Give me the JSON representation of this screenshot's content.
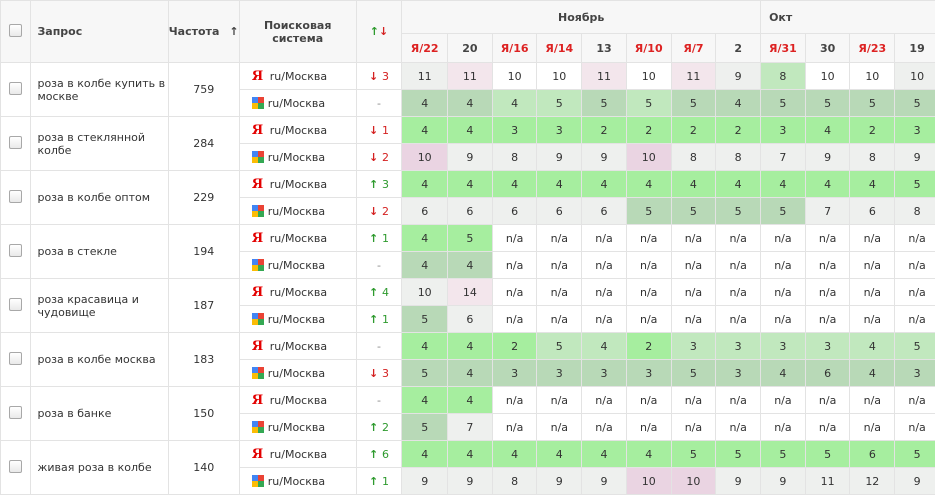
{
  "header": {
    "query": "Запрос",
    "frequency": "Частота",
    "frequency_sort": "↑",
    "engine": "Поисковая система",
    "trend_up": "↑",
    "trend_down": "↓",
    "month_nov": "Ноябрь",
    "month_oct": "Окт",
    "dates": [
      {
        "label": "/22",
        "ya": true
      },
      {
        "label": "20",
        "ya": false
      },
      {
        "label": "/16",
        "ya": true
      },
      {
        "label": "/14",
        "ya": true
      },
      {
        "label": "13",
        "ya": false
      },
      {
        "label": "/10",
        "ya": true
      },
      {
        "label": "/7",
        "ya": true
      },
      {
        "label": "2",
        "ya": false
      },
      {
        "label": "/31",
        "ya": true
      },
      {
        "label": "30",
        "ya": false
      },
      {
        "label": "/23",
        "ya": true
      },
      {
        "label": "19",
        "ya": false
      }
    ],
    "ya_letter": "Я"
  },
  "engines": {
    "yandex_logo": "Я",
    "region": "ru/Москва"
  },
  "rows": [
    {
      "query": "роза в колбе купить в москве",
      "freq": "759",
      "y": {
        "trend": "3",
        "dir": "down",
        "pos": [
          "11",
          "11",
          "10",
          "10",
          "11",
          "10",
          "11",
          "9",
          "8",
          "10",
          "10",
          "10"
        ],
        "cls": [
          "c-e",
          "c-p",
          "c-n",
          "c-n",
          "c-p",
          "c-n",
          "c-p",
          "c-e",
          "c-g2",
          "c-n",
          "c-n",
          "c-e"
        ]
      },
      "g": {
        "trend": "-",
        "dir": "none",
        "pos": [
          "4",
          "4",
          "4",
          "5",
          "5",
          "5",
          "5",
          "4",
          "5",
          "5",
          "5",
          "5"
        ],
        "cls": [
          "c-g3",
          "c-g3",
          "c-g2",
          "c-g2",
          "c-g3",
          "c-g2",
          "c-g3",
          "c-g3",
          "c-g3",
          "c-g3",
          "c-g3",
          "c-g3"
        ]
      }
    },
    {
      "query": "роза в стеклянной колбе",
      "freq": "284",
      "y": {
        "trend": "1",
        "dir": "down",
        "pos": [
          "4",
          "4",
          "3",
          "3",
          "2",
          "2",
          "2",
          "2",
          "3",
          "4",
          "2",
          "3"
        ],
        "cls": [
          "c-g1",
          "c-g1",
          "c-g1",
          "c-g1",
          "c-g1",
          "c-g1",
          "c-g1",
          "c-g1",
          "c-g1",
          "c-g1",
          "c-g1",
          "c-g1"
        ]
      },
      "g": {
        "trend": "2",
        "dir": "down",
        "pos": [
          "10",
          "9",
          "8",
          "9",
          "9",
          "10",
          "8",
          "8",
          "7",
          "9",
          "8",
          "9"
        ],
        "cls": [
          "c-pk",
          "c-e",
          "c-e",
          "c-e",
          "c-e",
          "c-pk",
          "c-e",
          "c-e",
          "c-e",
          "c-e",
          "c-e",
          "c-e"
        ]
      }
    },
    {
      "query": "роза в колбе оптом",
      "freq": "229",
      "y": {
        "trend": "3",
        "dir": "up",
        "pos": [
          "4",
          "4",
          "4",
          "4",
          "4",
          "4",
          "4",
          "4",
          "4",
          "4",
          "4",
          "5"
        ],
        "cls": [
          "c-g1",
          "c-g1",
          "c-g1",
          "c-g1",
          "c-g1",
          "c-g1",
          "c-g1",
          "c-g1",
          "c-g1",
          "c-g1",
          "c-g1",
          "c-g1"
        ]
      },
      "g": {
        "trend": "2",
        "dir": "down",
        "pos": [
          "6",
          "6",
          "6",
          "6",
          "6",
          "5",
          "5",
          "5",
          "5",
          "7",
          "6",
          "8"
        ],
        "cls": [
          "c-e",
          "c-e",
          "c-e",
          "c-e",
          "c-e",
          "c-g3",
          "c-g3",
          "c-g3",
          "c-g3",
          "c-e",
          "c-e",
          "c-e"
        ]
      }
    },
    {
      "query": "роза в стекле",
      "freq": "194",
      "y": {
        "trend": "1",
        "dir": "up",
        "pos": [
          "4",
          "5",
          "n/a",
          "n/a",
          "n/a",
          "n/a",
          "n/a",
          "n/a",
          "n/a",
          "n/a",
          "n/a",
          "n/a"
        ],
        "cls": [
          "c-g1",
          "c-g1",
          "c-n",
          "c-n",
          "c-n",
          "c-n",
          "c-n",
          "c-n",
          "c-n",
          "c-n",
          "c-n",
          "c-n"
        ]
      },
      "g": {
        "trend": "-",
        "dir": "none",
        "pos": [
          "4",
          "4",
          "n/a",
          "n/a",
          "n/a",
          "n/a",
          "n/a",
          "n/a",
          "n/a",
          "n/a",
          "n/a",
          "n/a"
        ],
        "cls": [
          "c-g3",
          "c-g3",
          "c-n",
          "c-n",
          "c-n",
          "c-n",
          "c-n",
          "c-n",
          "c-n",
          "c-n",
          "c-n",
          "c-n"
        ]
      }
    },
    {
      "query": "роза красавица и чудовище",
      "freq": "187",
      "y": {
        "trend": "4",
        "dir": "up",
        "pos": [
          "10",
          "14",
          "n/a",
          "n/a",
          "n/a",
          "n/a",
          "n/a",
          "n/a",
          "n/a",
          "n/a",
          "n/a",
          "n/a"
        ],
        "cls": [
          "c-e",
          "c-p",
          "c-n",
          "c-n",
          "c-n",
          "c-n",
          "c-n",
          "c-n",
          "c-n",
          "c-n",
          "c-n",
          "c-n"
        ]
      },
      "g": {
        "trend": "1",
        "dir": "up",
        "pos": [
          "5",
          "6",
          "n/a",
          "n/a",
          "n/a",
          "n/a",
          "n/a",
          "n/a",
          "n/a",
          "n/a",
          "n/a",
          "n/a"
        ],
        "cls": [
          "c-g3",
          "c-e",
          "c-n",
          "c-n",
          "c-n",
          "c-n",
          "c-n",
          "c-n",
          "c-n",
          "c-n",
          "c-n",
          "c-n"
        ]
      }
    },
    {
      "query": "роза в колбе москва",
      "freq": "183",
      "y": {
        "trend": "-",
        "dir": "none",
        "pos": [
          "4",
          "4",
          "2",
          "5",
          "4",
          "2",
          "3",
          "3",
          "3",
          "3",
          "4",
          "5"
        ],
        "cls": [
          "c-g1",
          "c-g1",
          "c-g1",
          "c-g2",
          "c-g2",
          "c-g1",
          "c-g2",
          "c-g2",
          "c-g2",
          "c-g2",
          "c-g2",
          "c-g2"
        ]
      },
      "g": {
        "trend": "3",
        "dir": "down",
        "pos": [
          "5",
          "4",
          "3",
          "3",
          "3",
          "3",
          "5",
          "3",
          "4",
          "6",
          "4",
          "3"
        ],
        "cls": [
          "c-g3",
          "c-g3",
          "c-g3",
          "c-g3",
          "c-g3",
          "c-g3",
          "c-g3",
          "c-g3",
          "c-g3",
          "c-g3",
          "c-g3",
          "c-g3"
        ]
      }
    },
    {
      "query": "роза в банке",
      "freq": "150",
      "y": {
        "trend": "-",
        "dir": "none",
        "pos": [
          "4",
          "4",
          "n/a",
          "n/a",
          "n/a",
          "n/a",
          "n/a",
          "n/a",
          "n/a",
          "n/a",
          "n/a",
          "n/a"
        ],
        "cls": [
          "c-g1",
          "c-g1",
          "c-n",
          "c-n",
          "c-n",
          "c-n",
          "c-n",
          "c-n",
          "c-n",
          "c-n",
          "c-n",
          "c-n"
        ]
      },
      "g": {
        "trend": "2",
        "dir": "up",
        "pos": [
          "5",
          "7",
          "n/a",
          "n/a",
          "n/a",
          "n/a",
          "n/a",
          "n/a",
          "n/a",
          "n/a",
          "n/a",
          "n/a"
        ],
        "cls": [
          "c-g3",
          "c-e",
          "c-n",
          "c-n",
          "c-n",
          "c-n",
          "c-n",
          "c-n",
          "c-n",
          "c-n",
          "c-n",
          "c-n"
        ]
      }
    },
    {
      "query": "живая роза в колбе",
      "freq": "140",
      "y": {
        "trend": "6",
        "dir": "up",
        "pos": [
          "4",
          "4",
          "4",
          "4",
          "4",
          "4",
          "5",
          "5",
          "5",
          "5",
          "6",
          "5"
        ],
        "cls": [
          "c-g1",
          "c-g1",
          "c-g1",
          "c-g1",
          "c-g1",
          "c-g1",
          "c-g1",
          "c-g1",
          "c-g1",
          "c-g1",
          "c-g1",
          "c-g1"
        ]
      },
      "g": {
        "trend": "1",
        "dir": "up",
        "pos": [
          "9",
          "9",
          "8",
          "9",
          "9",
          "10",
          "10",
          "9",
          "9",
          "11",
          "12",
          "9"
        ],
        "cls": [
          "c-e",
          "c-e",
          "c-e",
          "c-e",
          "c-e",
          "c-pk",
          "c-pk",
          "c-e",
          "c-e",
          "c-e",
          "c-e",
          "c-e"
        ]
      }
    }
  ]
}
